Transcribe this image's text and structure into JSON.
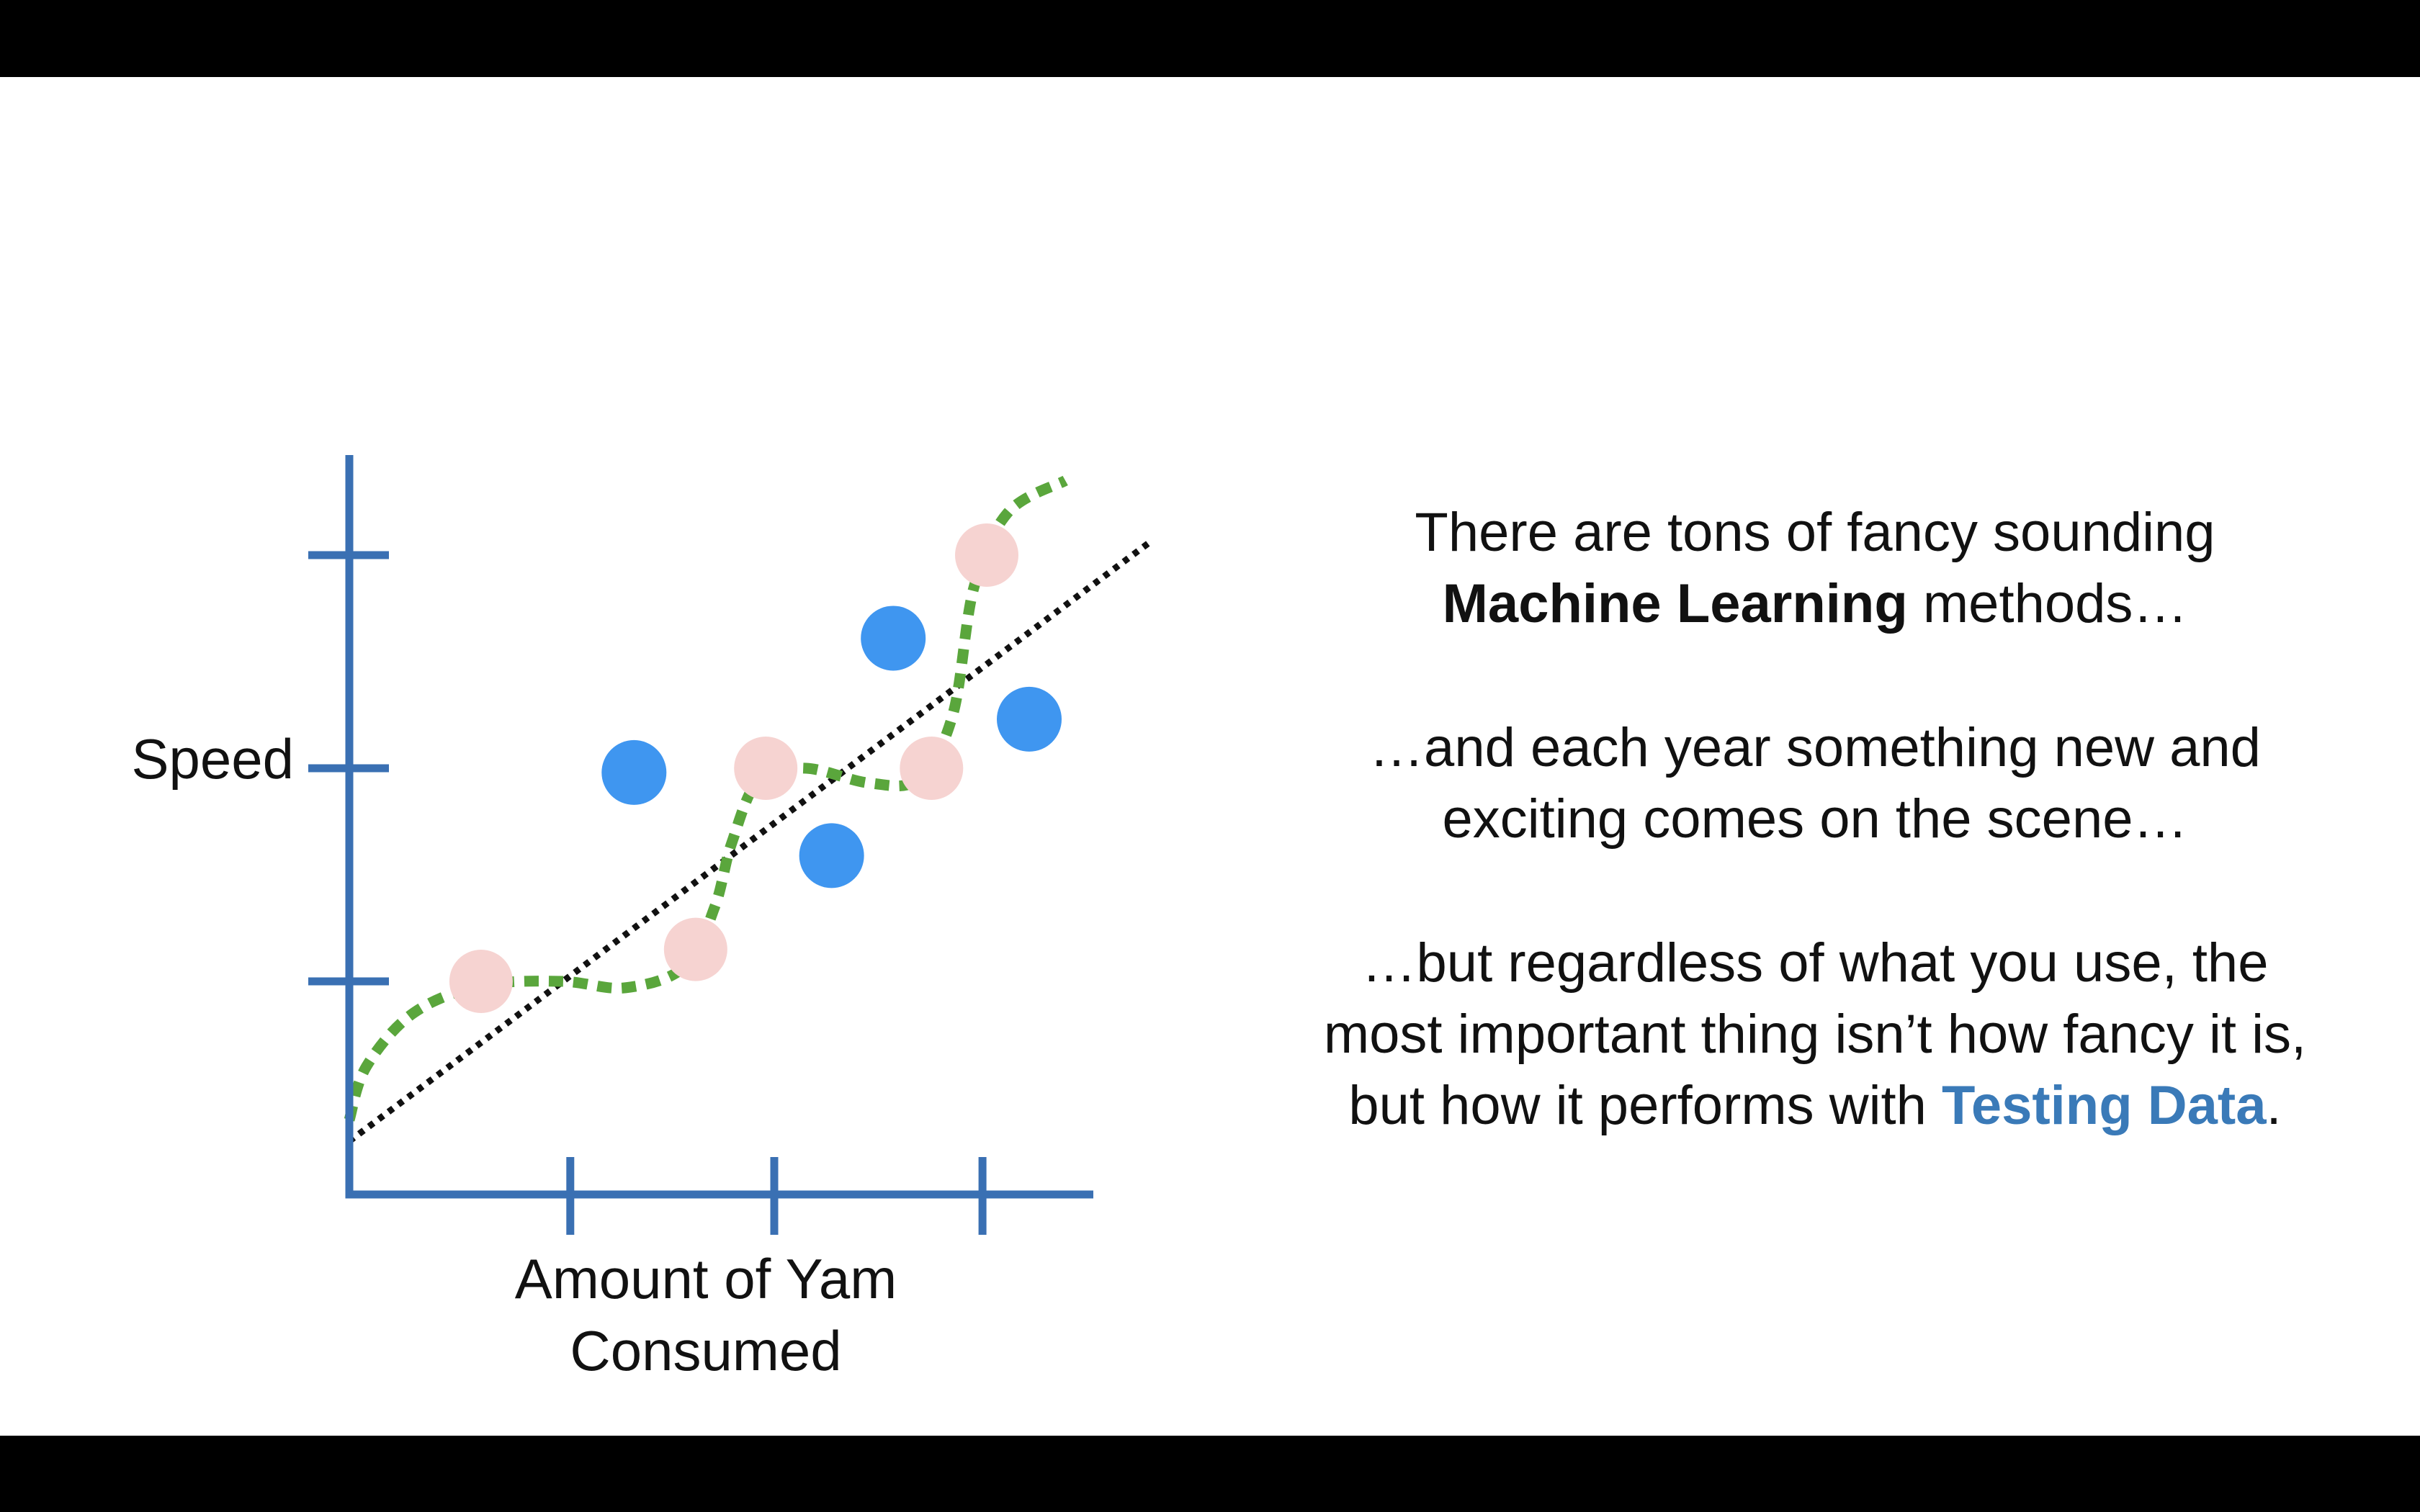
{
  "colors": {
    "axis": "#3a70b3",
    "training_point": "#f6d3d1",
    "testing_point": "#3f96f0",
    "squiggle": "#5aa63c",
    "line": "#111111",
    "accent_text": "#3a7ab8"
  },
  "chart_data": {
    "type": "scatter",
    "xlabel": "Amount of Yam Consumed",
    "ylabel": "Speed",
    "x_tick_labels": [],
    "y_tick_labels": [],
    "xlim": [
      0,
      3.5
    ],
    "ylim": [
      0,
      3.1
    ],
    "series": [
      {
        "name": "",
        "role": "training_points",
        "color": "#f6d3d1",
        "points": [
          {
            "x": 0.62,
            "y": 1.0
          },
          {
            "x": 1.63,
            "y": 1.15
          },
          {
            "x": 1.96,
            "y": 2.0
          },
          {
            "x": 2.74,
            "y": 2.0
          },
          {
            "x": 3.0,
            "y": 3.0
          }
        ]
      },
      {
        "name": "",
        "role": "testing_points",
        "color": "#3f96f0",
        "points": [
          {
            "x": 1.34,
            "y": 1.98
          },
          {
            "x": 2.27,
            "y": 1.59
          },
          {
            "x": 2.56,
            "y": 2.61
          },
          {
            "x": 3.2,
            "y": 2.23
          }
        ]
      }
    ],
    "fits": [
      {
        "role": "straight_line",
        "style": "dotted",
        "color": "#111111",
        "points": [
          {
            "x": 0.0,
            "y": 0.25
          },
          {
            "x": 3.78,
            "y": 3.07
          }
        ]
      },
      {
        "role": "squiggle",
        "style": "dashed",
        "color": "#5aa63c",
        "points": [
          {
            "x": 0.0,
            "y": 0.35
          },
          {
            "x": 0.08,
            "y": 0.6
          },
          {
            "x": 0.3,
            "y": 0.85
          },
          {
            "x": 0.62,
            "y": 0.98
          },
          {
            "x": 1.0,
            "y": 1.0
          },
          {
            "x": 1.3,
            "y": 0.97
          },
          {
            "x": 1.58,
            "y": 1.07
          },
          {
            "x": 1.72,
            "y": 1.35
          },
          {
            "x": 1.8,
            "y": 1.65
          },
          {
            "x": 1.93,
            "y": 1.95
          },
          {
            "x": 2.15,
            "y": 2.0
          },
          {
            "x": 2.45,
            "y": 1.93
          },
          {
            "x": 2.68,
            "y": 1.95
          },
          {
            "x": 2.84,
            "y": 2.25
          },
          {
            "x": 2.94,
            "y": 2.85
          },
          {
            "x": 3.1,
            "y": 3.2
          },
          {
            "x": 3.37,
            "y": 3.35
          }
        ]
      }
    ]
  },
  "slide_text": {
    "p1_line1": "There are tons of fancy sounding",
    "p1_bold": "Machine Learning",
    "p1_tail": "methods…",
    "p2_line1": "…and each year something new and",
    "p2_line2": "exciting comes on the scene…",
    "p3_line1": "…but regardless of what you use, the",
    "p3_line2": "most important thing isn’t how fancy it is,",
    "p3_line3_pre": "but how it performs with",
    "p3_line3_accent": "Testing Data",
    "p3_line3_post": "."
  }
}
